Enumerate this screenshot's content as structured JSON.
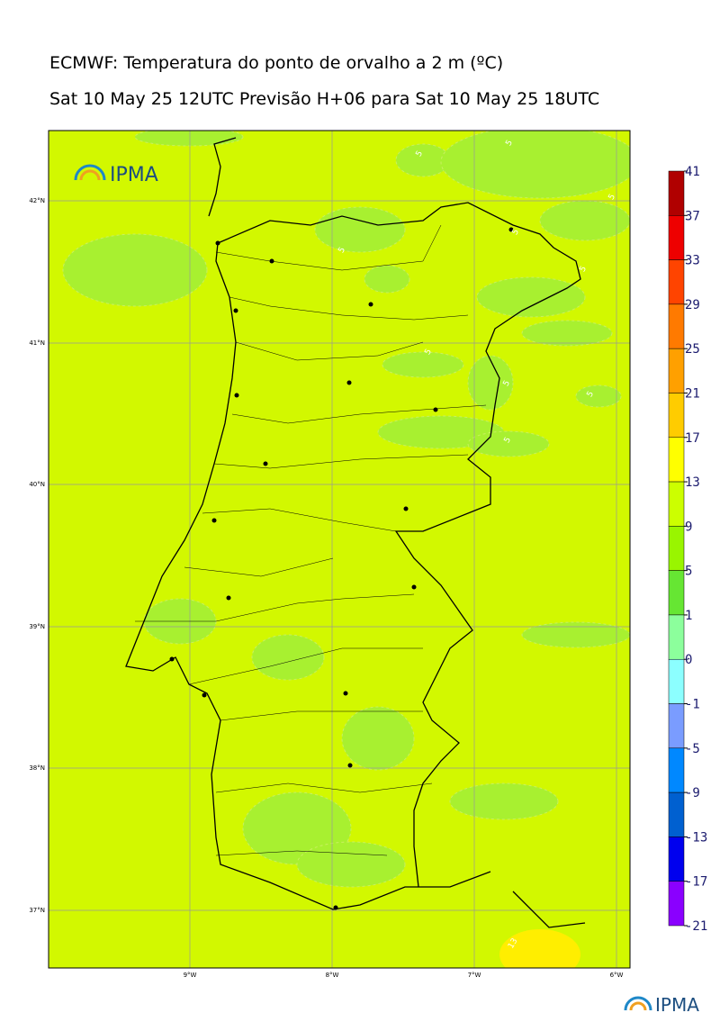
{
  "header": {
    "title": "ECMWF: Temperatura do ponto de orvalho a 2 m (ºC)",
    "subtitle": "Sat 10 May 25 12UTC Previsão H+06 para Sat 10 May 25 18UTC"
  },
  "map": {
    "logo": "IPMA",
    "lat_labels": [
      "42°N",
      "41°N",
      "40°N",
      "39°N",
      "38°N",
      "37°N"
    ],
    "lon_labels": [
      "9°W",
      "8°W",
      "7°W",
      "6°W"
    ],
    "contour_labels": [
      "5",
      "5",
      "5",
      "5",
      "5",
      "5",
      "5",
      "5",
      "5",
      "5",
      "13"
    ]
  },
  "colorbar": {
    "levels": [
      41,
      37,
      33,
      29,
      25,
      21,
      17,
      13,
      9,
      5,
      1,
      0,
      -1,
      -5,
      -9,
      -13,
      -17,
      -21
    ],
    "colors": [
      "#b00000",
      "#ee0000",
      "#ff4400",
      "#ff7a00",
      "#ffa000",
      "#ffcc00",
      "#ffff00",
      "#ccff00",
      "#99f500",
      "#66e633",
      "#8cff9c",
      "#8cffff",
      "#7a9cff",
      "#0088ff",
      "#0060d0",
      "#0000ee",
      "#8a00ff"
    ]
  },
  "footer": {
    "logo": "IPMA"
  }
}
